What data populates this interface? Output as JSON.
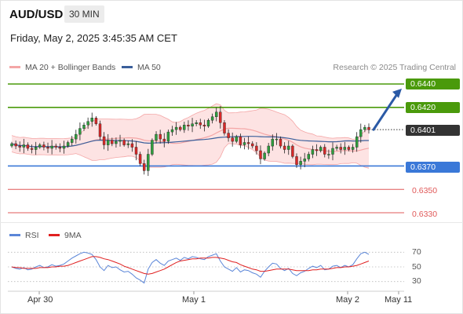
{
  "header": {
    "symbol": "AUD/USD",
    "timeframe": "30 MIN"
  },
  "timestamp": "Friday, May 2, 2025 3:45:35 AM CET",
  "legend": {
    "bb_label": "MA 20 + Bollinger Bands",
    "ma50_label": "MA 50",
    "credit": "Research © 2025 Trading Central"
  },
  "colors": {
    "bb": "#f4a6a6",
    "bb_fill": "#fde3e3",
    "ma50": "#3b5f9b",
    "up": "#2e9e3e",
    "down": "#d92828",
    "green_level": "#4a9a0b",
    "blue_level": "#3a78d8",
    "red_level": "#e05858",
    "last_price": "#333333",
    "rsi": "#5b86d8",
    "rsi_ma": "#e02020"
  },
  "rsi_legend": {
    "rsi_label": "RSI",
    "ma_label": "9MA",
    "ticks": [
      "70",
      "50",
      "30"
    ]
  },
  "x_axis": {
    "labels": [
      "Apr 30",
      "May 1",
      "May 2",
      "May 11"
    ]
  },
  "chart_data": [
    {
      "type": "candlestick",
      "y_range": [
        0.6324,
        0.6446
      ],
      "levels": [
        {
          "value": 0.644,
          "label": "0.6440",
          "kind": "resistance"
        },
        {
          "value": 0.642,
          "label": "0.6420",
          "kind": "resistance"
        },
        {
          "value": 0.6401,
          "label": "0.6401",
          "kind": "last_price"
        },
        {
          "value": 0.637,
          "label": "0.6370",
          "kind": "pivot"
        },
        {
          "value": 0.635,
          "label": "0.6350",
          "kind": "support"
        },
        {
          "value": 0.633,
          "label": "0.6330",
          "kind": "support"
        }
      ],
      "forecast_arrow": {
        "from": 0.6401,
        "to": 0.6436
      },
      "close": [
        0.6389,
        0.6387,
        0.6386,
        0.6388,
        0.6385,
        0.6384,
        0.6386,
        0.6388,
        0.6386,
        0.6385,
        0.6387,
        0.6386,
        0.6385,
        0.6387,
        0.639,
        0.6393,
        0.6397,
        0.6402,
        0.6405,
        0.6408,
        0.6411,
        0.6406,
        0.6395,
        0.6388,
        0.6392,
        0.6389,
        0.6391,
        0.6392,
        0.6388,
        0.6389,
        0.6386,
        0.638,
        0.6372,
        0.6366,
        0.638,
        0.6392,
        0.6397,
        0.6393,
        0.6391,
        0.6399,
        0.6401,
        0.6403,
        0.6401,
        0.6405,
        0.6404,
        0.6406,
        0.6407,
        0.6405,
        0.6404,
        0.6409,
        0.6412,
        0.6416,
        0.6407,
        0.6398,
        0.6394,
        0.6391,
        0.6395,
        0.6388,
        0.639,
        0.6389,
        0.6387,
        0.6383,
        0.6376,
        0.6381,
        0.6387,
        0.6393,
        0.6393,
        0.6387,
        0.6384,
        0.6387,
        0.6378,
        0.6371,
        0.6374,
        0.6376,
        0.638,
        0.6384,
        0.6383,
        0.6386,
        0.638,
        0.638,
        0.6385,
        0.6386,
        0.6384,
        0.6386,
        0.6384,
        0.6386,
        0.6395,
        0.6401,
        0.6403,
        0.6401
      ],
      "note": "Close series of the 30-minute candles; open is the previous close."
    },
    {
      "type": "line",
      "title": "RSI",
      "y_range": [
        20,
        80
      ],
      "ticks": [
        70,
        50,
        30
      ],
      "series": [
        {
          "name": "RSI",
          "values": [
            50,
            48,
            47,
            49,
            46,
            47,
            50,
            52,
            49,
            50,
            53,
            51,
            52,
            54,
            58,
            62,
            65,
            68,
            70,
            69,
            67,
            60,
            50,
            45,
            52,
            49,
            50,
            46,
            43,
            44,
            40,
            35,
            32,
            28,
            47,
            56,
            60,
            55,
            52,
            58,
            60,
            62,
            59,
            63,
            61,
            64,
            63,
            61,
            60,
            64,
            66,
            68,
            58,
            50,
            47,
            44,
            49,
            43,
            46,
            45,
            42,
            40,
            36,
            44,
            50,
            55,
            54,
            48,
            45,
            48,
            41,
            38,
            42,
            44,
            48,
            51,
            49,
            52,
            46,
            47,
            51,
            52,
            49,
            52,
            50,
            53,
            61,
            68,
            70,
            67
          ]
        },
        {
          "name": "9MA",
          "values": [
            50,
            49,
            49,
            48,
            48,
            48,
            48,
            49,
            49,
            49,
            50,
            50,
            51,
            51,
            52,
            54,
            56,
            58,
            60,
            62,
            64,
            64,
            63,
            61,
            60,
            58,
            56,
            54,
            51,
            49,
            47,
            45,
            43,
            41,
            40,
            41,
            43,
            45,
            47,
            50,
            53,
            56,
            58,
            59,
            60,
            61,
            61,
            62,
            62,
            62,
            63,
            63,
            62,
            61,
            59,
            57,
            56,
            53,
            51,
            49,
            47,
            46,
            44,
            44,
            45,
            46,
            47,
            47,
            47,
            47,
            46,
            45,
            45,
            45,
            45,
            46,
            46,
            47,
            47,
            47,
            48,
            49,
            49,
            50,
            50,
            51,
            52,
            54,
            56,
            58
          ]
        }
      ]
    }
  ]
}
